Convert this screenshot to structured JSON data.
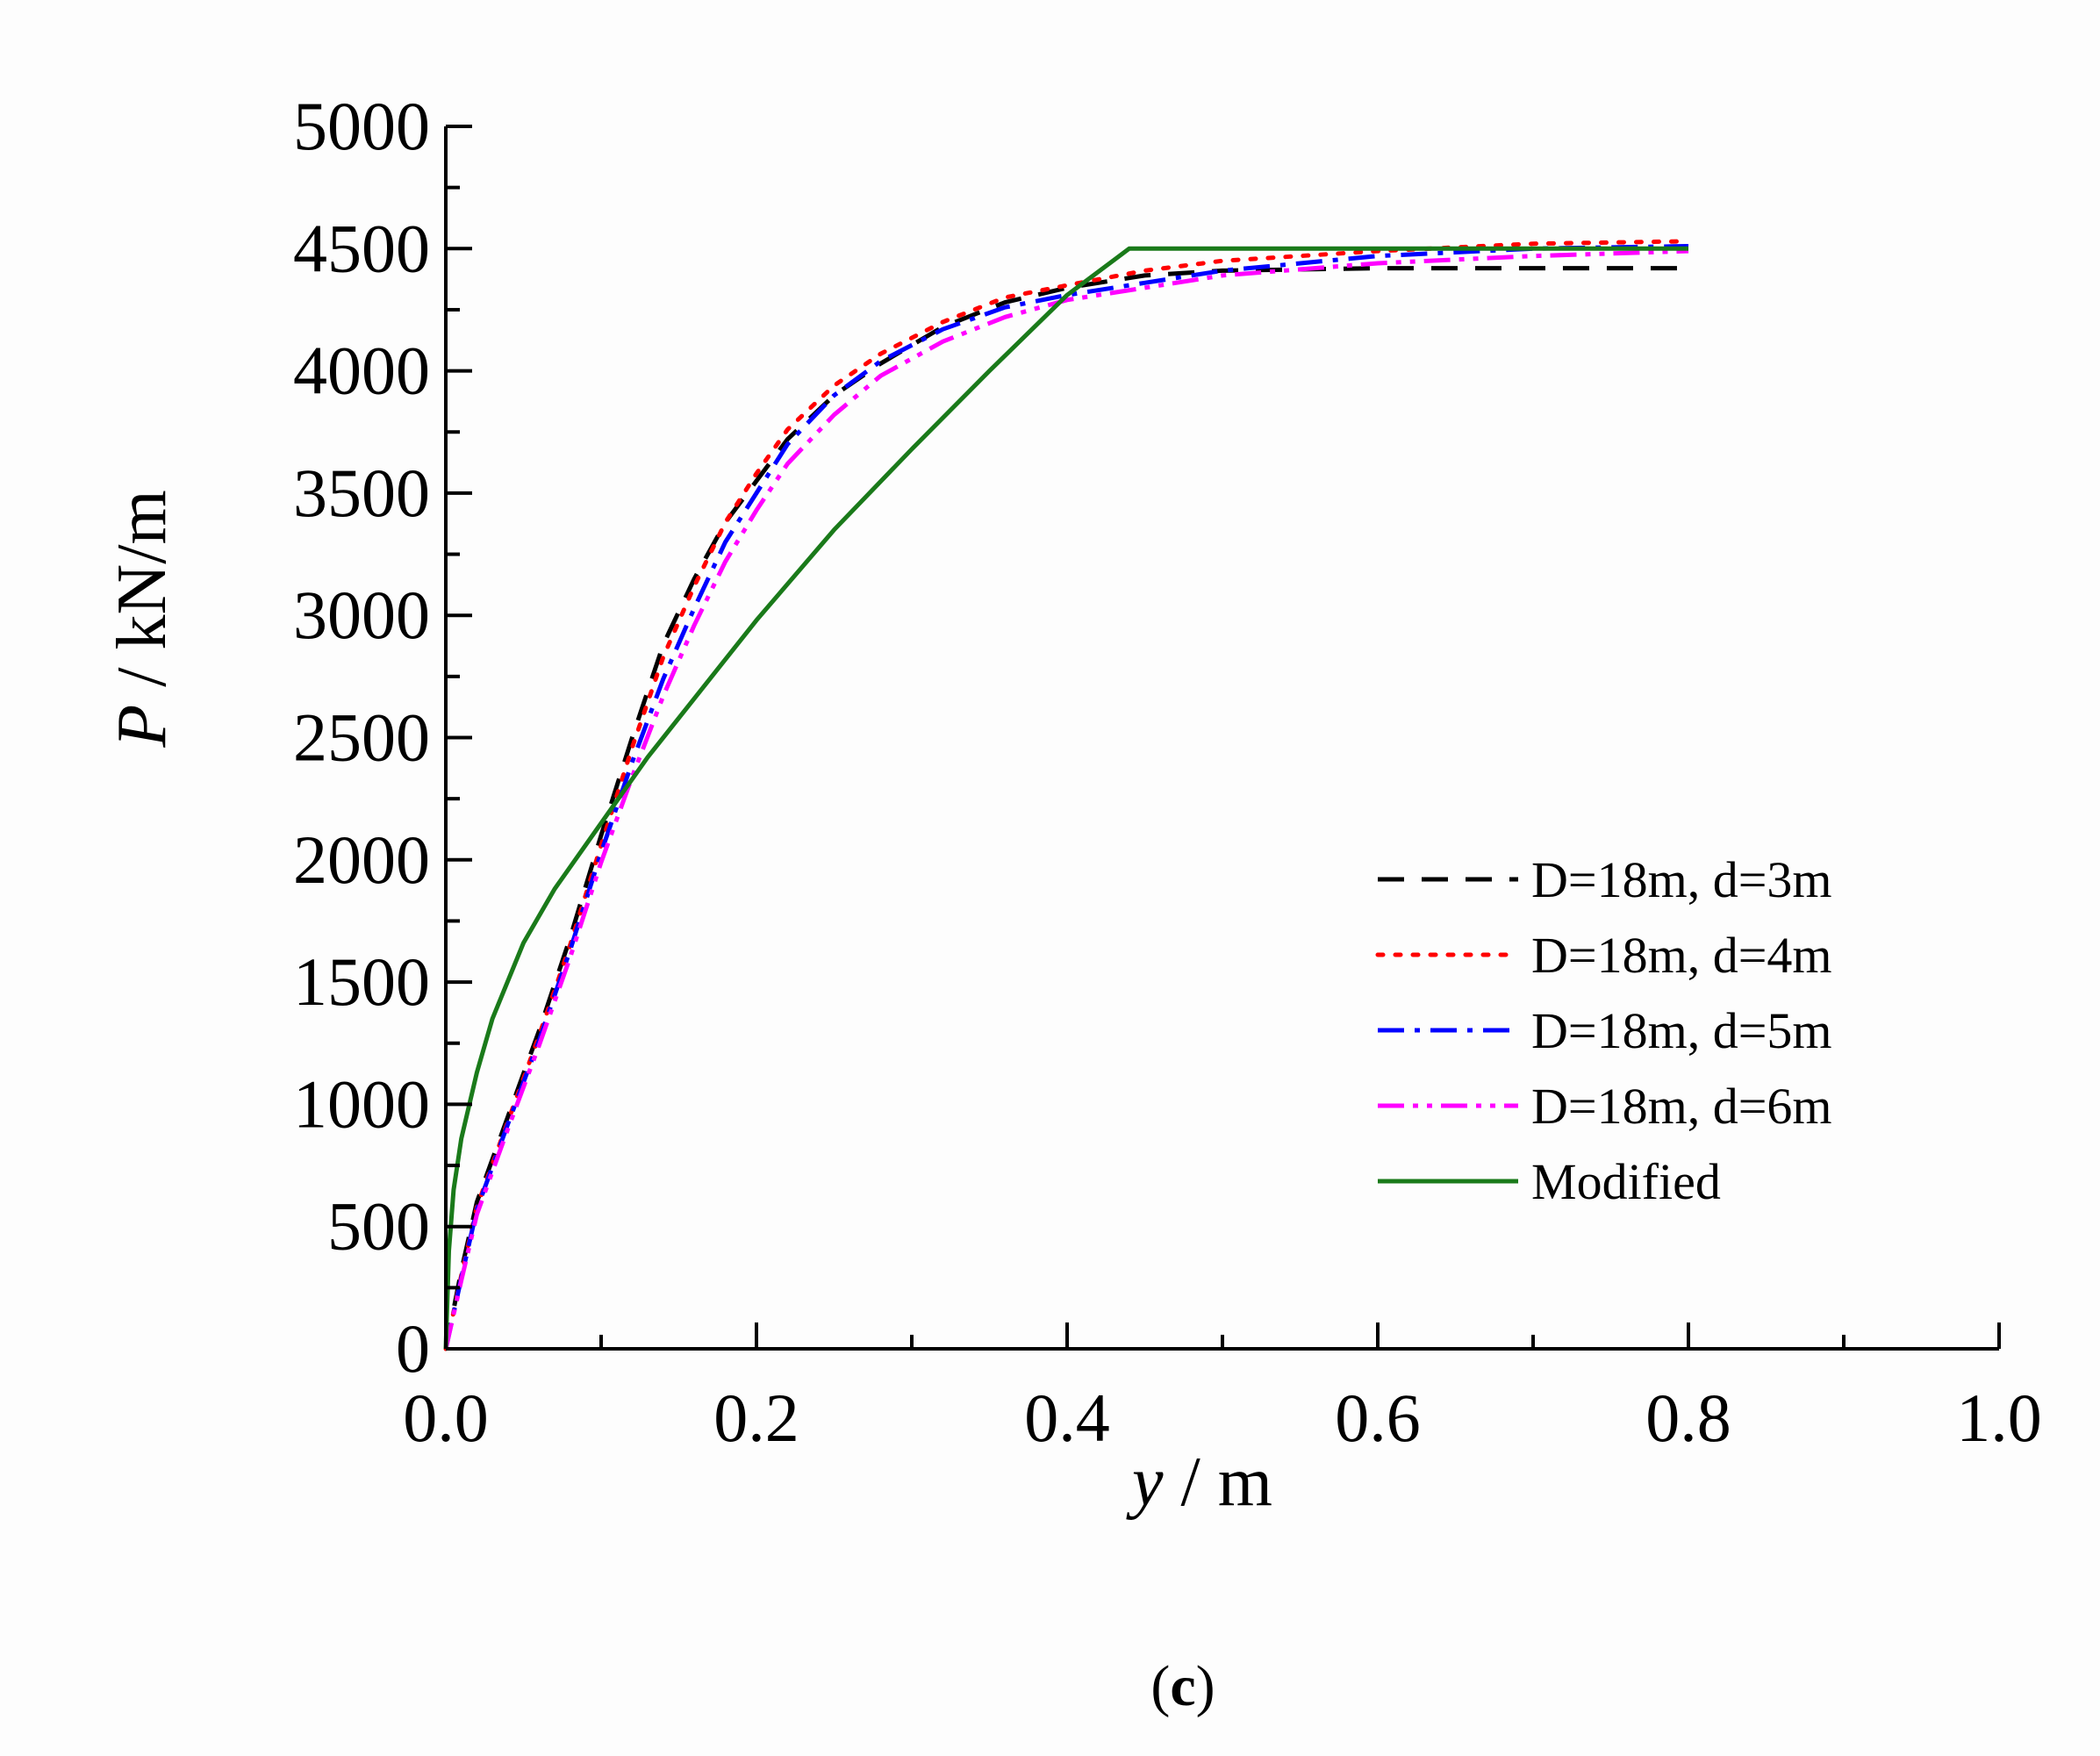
{
  "chart_data": {
    "type": "line",
    "xlabel": {
      "var": "y",
      "unit": " / m"
    },
    "ylabel": {
      "var": "P",
      "unit": " / kN/m"
    },
    "xlim": [
      0.0,
      1.0
    ],
    "ylim": [
      0,
      5000
    ],
    "x_ticks": [
      "0.0",
      "0.2",
      "0.4",
      "0.6",
      "0.8",
      "1.0"
    ],
    "y_ticks": [
      "0",
      "500",
      "1000",
      "1500",
      "2000",
      "2500",
      "3000",
      "3500",
      "4000",
      "4500",
      "5000"
    ],
    "grid": false,
    "legend_position": "right",
    "caption": {
      "open": "(",
      "letter": "c",
      "close": ")"
    },
    "series": [
      {
        "name": "D=18m, d=3m",
        "color": "#000000",
        "dash": "dashed",
        "points": [
          [
            0,
            0
          ],
          [
            0.01,
            320
          ],
          [
            0.02,
            600
          ],
          [
            0.04,
            950
          ],
          [
            0.06,
            1300
          ],
          [
            0.08,
            1680
          ],
          [
            0.1,
            2100
          ],
          [
            0.12,
            2500
          ],
          [
            0.14,
            2880
          ],
          [
            0.16,
            3150
          ],
          [
            0.18,
            3380
          ],
          [
            0.2,
            3550
          ],
          [
            0.22,
            3720
          ],
          [
            0.25,
            3900
          ],
          [
            0.28,
            4030
          ],
          [
            0.32,
            4180
          ],
          [
            0.36,
            4280
          ],
          [
            0.4,
            4340
          ],
          [
            0.45,
            4390
          ],
          [
            0.5,
            4410
          ],
          [
            0.6,
            4420
          ],
          [
            0.8,
            4420
          ]
        ]
      },
      {
        "name": "D=18m, d=4m",
        "color": "#ff0000",
        "dash": "dotted",
        "points": [
          [
            0,
            0
          ],
          [
            0.01,
            300
          ],
          [
            0.02,
            580
          ],
          [
            0.04,
            930
          ],
          [
            0.06,
            1280
          ],
          [
            0.08,
            1650
          ],
          [
            0.1,
            2060
          ],
          [
            0.12,
            2460
          ],
          [
            0.14,
            2830
          ],
          [
            0.16,
            3120
          ],
          [
            0.18,
            3380
          ],
          [
            0.2,
            3580
          ],
          [
            0.22,
            3760
          ],
          [
            0.25,
            3940
          ],
          [
            0.28,
            4070
          ],
          [
            0.32,
            4200
          ],
          [
            0.36,
            4300
          ],
          [
            0.4,
            4350
          ],
          [
            0.45,
            4410
          ],
          [
            0.5,
            4450
          ],
          [
            0.6,
            4490
          ],
          [
            0.7,
            4520
          ],
          [
            0.8,
            4530
          ]
        ]
      },
      {
        "name": "D=18m, d=5m",
        "color": "#0000ff",
        "dash": "dashdot",
        "points": [
          [
            0,
            0
          ],
          [
            0.01,
            290
          ],
          [
            0.02,
            570
          ],
          [
            0.04,
            920
          ],
          [
            0.06,
            1260
          ],
          [
            0.08,
            1630
          ],
          [
            0.1,
            2030
          ],
          [
            0.12,
            2400
          ],
          [
            0.14,
            2740
          ],
          [
            0.16,
            3030
          ],
          [
            0.18,
            3300
          ],
          [
            0.2,
            3500
          ],
          [
            0.22,
            3700
          ],
          [
            0.25,
            3900
          ],
          [
            0.28,
            4040
          ],
          [
            0.32,
            4170
          ],
          [
            0.36,
            4260
          ],
          [
            0.4,
            4310
          ],
          [
            0.45,
            4360
          ],
          [
            0.5,
            4410
          ],
          [
            0.6,
            4470
          ],
          [
            0.7,
            4500
          ],
          [
            0.8,
            4510
          ]
        ]
      },
      {
        "name": "D=18m, d=6m",
        "color": "#ff00ff",
        "dash": "dashdotdot",
        "points": [
          [
            0,
            0
          ],
          [
            0.01,
            280
          ],
          [
            0.02,
            550
          ],
          [
            0.04,
            900
          ],
          [
            0.06,
            1240
          ],
          [
            0.08,
            1600
          ],
          [
            0.1,
            1990
          ],
          [
            0.12,
            2340
          ],
          [
            0.14,
            2670
          ],
          [
            0.16,
            2960
          ],
          [
            0.18,
            3220
          ],
          [
            0.2,
            3430
          ],
          [
            0.22,
            3620
          ],
          [
            0.25,
            3820
          ],
          [
            0.28,
            3980
          ],
          [
            0.32,
            4120
          ],
          [
            0.36,
            4220
          ],
          [
            0.4,
            4290
          ],
          [
            0.45,
            4340
          ],
          [
            0.5,
            4390
          ],
          [
            0.6,
            4440
          ],
          [
            0.7,
            4470
          ],
          [
            0.8,
            4490
          ]
        ]
      },
      {
        "name": "Modified",
        "color": "#1a7a1a",
        "dash": "solid",
        "points": [
          [
            0,
            0
          ],
          [
            0.002,
            400
          ],
          [
            0.005,
            650
          ],
          [
            0.01,
            860
          ],
          [
            0.02,
            1130
          ],
          [
            0.03,
            1350
          ],
          [
            0.05,
            1660
          ],
          [
            0.07,
            1880
          ],
          [
            0.1,
            2150
          ],
          [
            0.13,
            2420
          ],
          [
            0.16,
            2660
          ],
          [
            0.2,
            2980
          ],
          [
            0.25,
            3350
          ],
          [
            0.3,
            3680
          ],
          [
            0.35,
            4000
          ],
          [
            0.4,
            4310
          ],
          [
            0.44,
            4500
          ],
          [
            0.5,
            4500
          ],
          [
            0.6,
            4500
          ],
          [
            0.7,
            4500
          ],
          [
            0.8,
            4500
          ]
        ]
      }
    ]
  }
}
